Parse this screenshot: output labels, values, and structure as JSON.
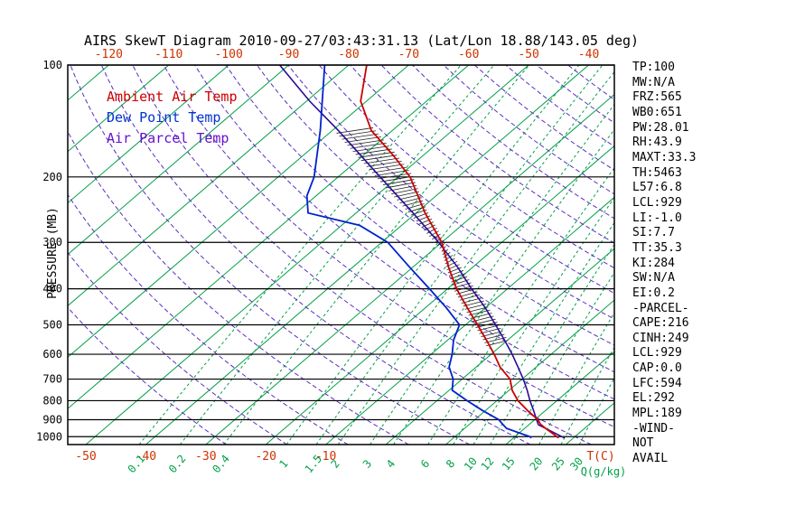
{
  "title": "AIRS SkewT Diagram 2010-09-27/03:43:31.13 (Lat/Lon 18.88/143.05 deg)",
  "colors": {
    "isotherm_green": "#00a047",
    "mixing_green": "#00a047",
    "adiabat_purple": "#5a2fc0",
    "ambient_red": "#cc0000",
    "axis_label_red": "#cc3300",
    "dewpoint_blue": "#0022cc",
    "parcel_navy": "#2a0a99",
    "grid_black": "#000000",
    "hatch_black": "#222222"
  },
  "legend": [
    {
      "label": "Ambient Air Temp",
      "color": "#cc0000"
    },
    {
      "label": "Dew Point Temp",
      "color": "#0033cc"
    },
    {
      "label": "Air Parcel Temp",
      "color": "#6611cc"
    }
  ],
  "axes": {
    "pressure_label": "PRESSURE (MB)",
    "pressure_ticks": [
      100,
      200,
      300,
      400,
      500,
      600,
      700,
      800,
      900,
      1000
    ],
    "top_temp_ticks": [
      -120,
      -110,
      -100,
      -90,
      -80,
      -70,
      -60,
      -50,
      -40
    ],
    "bottom_temp_ticks": [
      -50,
      -40,
      -30,
      -20,
      -10
    ],
    "temp_unit_label": "T(C)",
    "mixing_ratio_ticks": [
      0.1,
      0.2,
      0.4,
      1,
      1.5,
      2,
      3,
      4,
      6,
      8,
      10,
      12,
      15,
      20,
      25,
      30
    ],
    "mixing_unit_label": "Q(g/kg)"
  },
  "stats": {
    "lines": [
      "TP:100",
      "MW:N/A",
      "FRZ:565",
      "WB0:651",
      "PW:28.01",
      "RH:43.9",
      "MAXT:33.3",
      "TH:5463",
      "L57:6.8",
      "LCL:929",
      "LI:-1.0",
      "SI:7.7",
      "TT:35.3",
      "KI:284",
      "SW:N/A",
      "EI:0.2",
      "-PARCEL-",
      "CAPE:216",
      "CINH:249",
      "LCL:929",
      "CAP:0.0",
      "LFC:594",
      "EL:292",
      "MPL:189",
      "-WIND-",
      "NOT",
      "AVAIL"
    ]
  },
  "chart_data": {
    "type": "line",
    "variant": "skew-t-log-p",
    "title": "AIRS SkewT Diagram 2010-09-27/03:43:31.13 (Lat/Lon 18.88/143.05 deg)",
    "pressure_axis": {
      "label": "PRESSURE (MB)",
      "scale": "log",
      "range": [
        100,
        1050
      ],
      "ticks": [
        100,
        200,
        300,
        400,
        500,
        600,
        700,
        800,
        900,
        1000
      ]
    },
    "temp_axis": {
      "unit": "C",
      "label": "T(C)",
      "top_ticks": [
        -120,
        -110,
        -100,
        -90,
        -80,
        -70,
        -60,
        -50,
        -40
      ],
      "bottom_ticks": [
        -50,
        -40,
        -30,
        -20,
        -10
      ]
    },
    "mixing_ratio_axis": {
      "label": "Q(g/kg)",
      "ticks": [
        0.1,
        0.2,
        0.4,
        1,
        1.5,
        2,
        3,
        4,
        6,
        8,
        10,
        12,
        15,
        20,
        25,
        30
      ]
    },
    "grid": {
      "isotherms_c": {
        "min": -160,
        "max": 40,
        "step": 10
      },
      "dry_adiabats_c": {
        "min": -30,
        "max": 170,
        "step": 10
      },
      "saturation_mixing_ratio_gkg": [
        0.1,
        0.2,
        0.4,
        1,
        1.5,
        2,
        3,
        4,
        6,
        8,
        10,
        12,
        15,
        20,
        25,
        30
      ]
    },
    "cape_hatch_pressure_range": [
      560,
      150
    ],
    "series": [
      {
        "name": "Ambient Air Temp",
        "color": "#cc0000",
        "points_p_t": [
          [
            1008,
            27.5
          ],
          [
            1000,
            27.0
          ],
          [
            950,
            23.5
          ],
          [
            925,
            21.8
          ],
          [
            900,
            20.5
          ],
          [
            850,
            17.0
          ],
          [
            800,
            13.5
          ],
          [
            750,
            10.5
          ],
          [
            700,
            8.0
          ],
          [
            650,
            4.0
          ],
          [
            600,
            0.5
          ],
          [
            550,
            -3.5
          ],
          [
            500,
            -8.0
          ],
          [
            450,
            -13.0
          ],
          [
            400,
            -18.5
          ],
          [
            350,
            -24.0
          ],
          [
            300,
            -30.0
          ],
          [
            250,
            -38.5
          ],
          [
            200,
            -48.0
          ],
          [
            175,
            -55.0
          ],
          [
            150,
            -63.5
          ],
          [
            125,
            -71.0
          ],
          [
            100,
            -77.0
          ]
        ]
      },
      {
        "name": "Dew Point Temp",
        "color": "#0022cc",
        "points_p_t": [
          [
            1008,
            23.0
          ],
          [
            1000,
            22.5
          ],
          [
            950,
            17.0
          ],
          [
            925,
            15.5
          ],
          [
            900,
            14.0
          ],
          [
            850,
            9.5
          ],
          [
            800,
            5.0
          ],
          [
            750,
            0.5
          ],
          [
            700,
            -1.5
          ],
          [
            650,
            -4.5
          ],
          [
            600,
            -6.5
          ],
          [
            550,
            -9.0
          ],
          [
            500,
            -11.0
          ],
          [
            450,
            -16.5
          ],
          [
            400,
            -23.0
          ],
          [
            350,
            -30.5
          ],
          [
            300,
            -39.0
          ],
          [
            270,
            -47.0
          ],
          [
            250,
            -58.0
          ],
          [
            225,
            -61.5
          ],
          [
            200,
            -64.0
          ],
          [
            150,
            -72.0
          ],
          [
            100,
            -84.0
          ]
        ]
      },
      {
        "name": "Air Parcel Temp",
        "color": "#2a0a99",
        "points_p_t": [
          [
            1008,
            28.5
          ],
          [
            929,
            21.6
          ],
          [
            900,
            20.3
          ],
          [
            850,
            18.0
          ],
          [
            800,
            15.5
          ],
          [
            750,
            13.0
          ],
          [
            700,
            10.2
          ],
          [
            650,
            7.0
          ],
          [
            600,
            3.5
          ],
          [
            550,
            -0.5
          ],
          [
            500,
            -5.0
          ],
          [
            450,
            -10.0
          ],
          [
            400,
            -16.0
          ],
          [
            350,
            -22.5
          ],
          [
            300,
            -30.5
          ],
          [
            250,
            -40.5
          ],
          [
            200,
            -53.0
          ],
          [
            150,
            -69.0
          ],
          [
            125,
            -79.5
          ],
          [
            100,
            -91.5
          ]
        ]
      }
    ]
  }
}
